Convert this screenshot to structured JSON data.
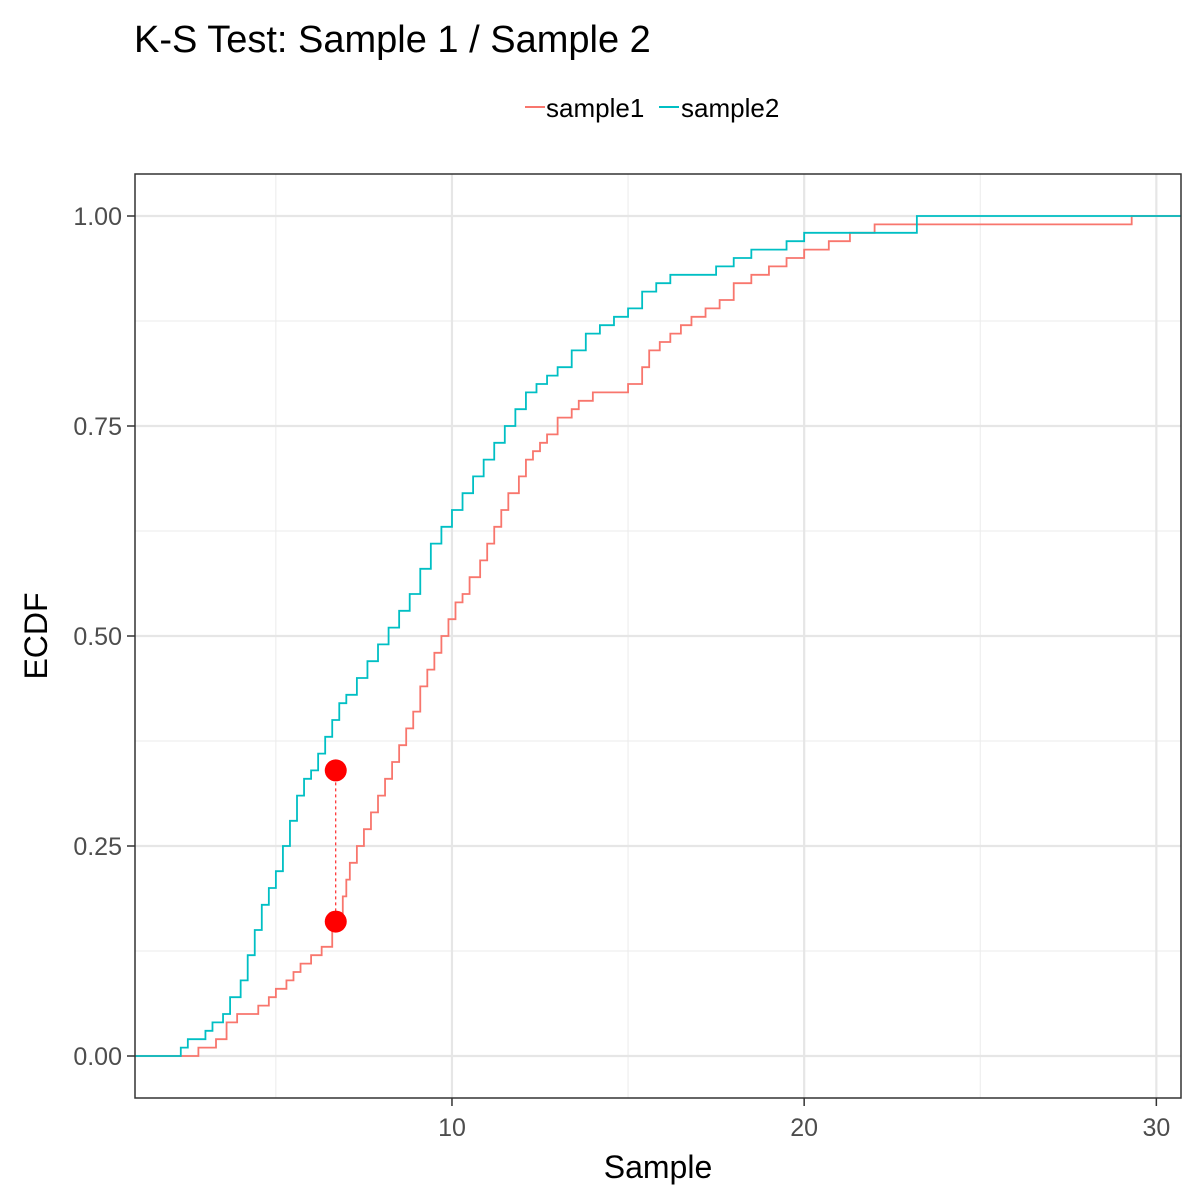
{
  "chart_data": {
    "type": "line",
    "title": "K-S Test: Sample 1 / Sample 2",
    "xlabel": "Sample",
    "ylabel": "ECDF",
    "xlim": [
      1.0,
      30.7
    ],
    "ylim": [
      -0.05,
      1.05
    ],
    "x_ticks": [
      10,
      20,
      30
    ],
    "x_tick_labels": [
      "10",
      "20",
      "30"
    ],
    "y_ticks": [
      0,
      0.25,
      0.5,
      0.75,
      1.0
    ],
    "y_tick_labels": [
      "0.00",
      "0.25",
      "0.50",
      "0.75",
      "1.00"
    ],
    "grid": true,
    "legend_position": "top",
    "series": [
      {
        "name": "sample1",
        "color": "#F8766D",
        "step_x": [
          1.0,
          2.4,
          2.8,
          3.3,
          3.6,
          3.9,
          4.5,
          4.8,
          5.0,
          5.3,
          5.5,
          5.7,
          6.0,
          6.3,
          6.6,
          6.8,
          6.9,
          7.0,
          7.1,
          7.3,
          7.5,
          7.7,
          7.9,
          8.1,
          8.3,
          8.5,
          8.7,
          8.9,
          9.1,
          9.3,
          9.5,
          9.7,
          9.9,
          10.1,
          10.3,
          10.5,
          10.8,
          11.0,
          11.2,
          11.4,
          11.6,
          11.9,
          12.1,
          12.3,
          12.5,
          12.7,
          13.0,
          13.4,
          13.6,
          14.0,
          14.3,
          14.6,
          15.0,
          15.4,
          15.6,
          15.9,
          16.2,
          16.5,
          16.8,
          17.2,
          17.6,
          18.0,
          18.5,
          19.0,
          19.5,
          20.0,
          20.7,
          21.3,
          22.0,
          23.2,
          29.3,
          30.7
        ],
        "step_y": [
          0.0,
          0.0,
          0.01,
          0.02,
          0.04,
          0.05,
          0.06,
          0.07,
          0.08,
          0.09,
          0.1,
          0.11,
          0.12,
          0.13,
          0.15,
          0.17,
          0.19,
          0.21,
          0.23,
          0.25,
          0.27,
          0.29,
          0.31,
          0.33,
          0.35,
          0.37,
          0.39,
          0.41,
          0.44,
          0.46,
          0.48,
          0.5,
          0.52,
          0.54,
          0.55,
          0.57,
          0.59,
          0.61,
          0.63,
          0.65,
          0.67,
          0.69,
          0.71,
          0.72,
          0.73,
          0.74,
          0.76,
          0.77,
          0.78,
          0.79,
          0.79,
          0.79,
          0.8,
          0.82,
          0.84,
          0.85,
          0.86,
          0.87,
          0.88,
          0.89,
          0.9,
          0.92,
          0.93,
          0.94,
          0.95,
          0.96,
          0.97,
          0.98,
          0.99,
          0.99,
          1.0,
          1.0
        ]
      },
      {
        "name": "sample2",
        "color": "#00BFC4",
        "step_x": [
          1.0,
          2.3,
          2.5,
          3.0,
          3.2,
          3.5,
          3.7,
          4.0,
          4.2,
          4.4,
          4.6,
          4.8,
          5.0,
          5.2,
          5.4,
          5.6,
          5.8,
          6.0,
          6.2,
          6.4,
          6.6,
          6.8,
          7.0,
          7.3,
          7.6,
          7.9,
          8.2,
          8.5,
          8.8,
          9.1,
          9.4,
          9.7,
          10.0,
          10.3,
          10.6,
          10.9,
          11.2,
          11.5,
          11.8,
          12.1,
          12.4,
          12.7,
          13.0,
          13.4,
          13.8,
          14.2,
          14.6,
          15.0,
          15.4,
          15.8,
          16.2,
          16.6,
          17.0,
          17.5,
          18.0,
          18.5,
          19.0,
          19.5,
          20.0,
          21.0,
          22.0,
          23.2,
          30.7
        ],
        "step_y": [
          0.0,
          0.01,
          0.02,
          0.03,
          0.04,
          0.05,
          0.07,
          0.09,
          0.12,
          0.15,
          0.18,
          0.2,
          0.22,
          0.25,
          0.28,
          0.31,
          0.33,
          0.34,
          0.36,
          0.38,
          0.4,
          0.42,
          0.43,
          0.45,
          0.47,
          0.49,
          0.51,
          0.53,
          0.55,
          0.58,
          0.61,
          0.63,
          0.65,
          0.67,
          0.69,
          0.71,
          0.73,
          0.75,
          0.77,
          0.79,
          0.8,
          0.81,
          0.82,
          0.84,
          0.86,
          0.87,
          0.88,
          0.89,
          0.91,
          0.92,
          0.93,
          0.93,
          0.93,
          0.94,
          0.95,
          0.96,
          0.96,
          0.97,
          0.98,
          0.98,
          0.98,
          1.0,
          1.0
        ]
      }
    ],
    "ks_statistic": {
      "x": 6.7,
      "y_low": 0.16,
      "y_high": 0.34,
      "color": "#FF0000"
    }
  }
}
